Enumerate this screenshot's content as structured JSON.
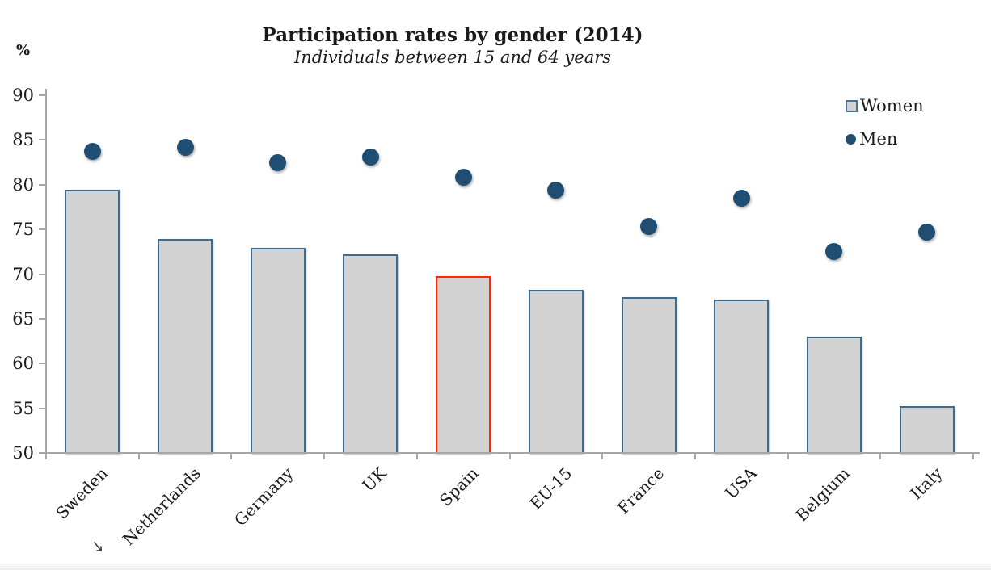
{
  "chart_data": {
    "type": "combo-bar-scatter",
    "title": "Participation rates by gender (2014)",
    "subtitle": "Individuals between 15 and 64 years",
    "y_axis_unit_label": "%",
    "categories": [
      "Sweden",
      "Netherlands",
      "Germany",
      "UK",
      "Spain",
      "EU-15",
      "France",
      "USA",
      "Belgium",
      "Italy"
    ],
    "series": [
      {
        "name": "Women",
        "chart_type": "bar",
        "values": [
          79.4,
          73.9,
          72.9,
          72.2,
          69.8,
          68.2,
          67.4,
          67.2,
          63.0,
          55.2
        ],
        "fill": "#D2D2D2",
        "border_color": "#3D6B8F",
        "highlighted_category": "Spain",
        "highlight_border_color": "#FF2600"
      },
      {
        "name": "Men",
        "chart_type": "scatter",
        "values": [
          83.7,
          84.2,
          82.5,
          83.1,
          80.8,
          79.4,
          75.3,
          78.5,
          72.5,
          74.7
        ],
        "color": "#1F4E72"
      }
    ],
    "ylim": [
      50,
      90
    ],
    "yticks": [
      50,
      55,
      60,
      65,
      70,
      75,
      80,
      85,
      90
    ],
    "ytick_labels": [
      "50",
      "55",
      "60",
      "65",
      "70",
      "75",
      "80",
      "85",
      "90"
    ],
    "grid": "off",
    "legend_position": "top-right",
    "axis_color": "#A6A6A6"
  }
}
